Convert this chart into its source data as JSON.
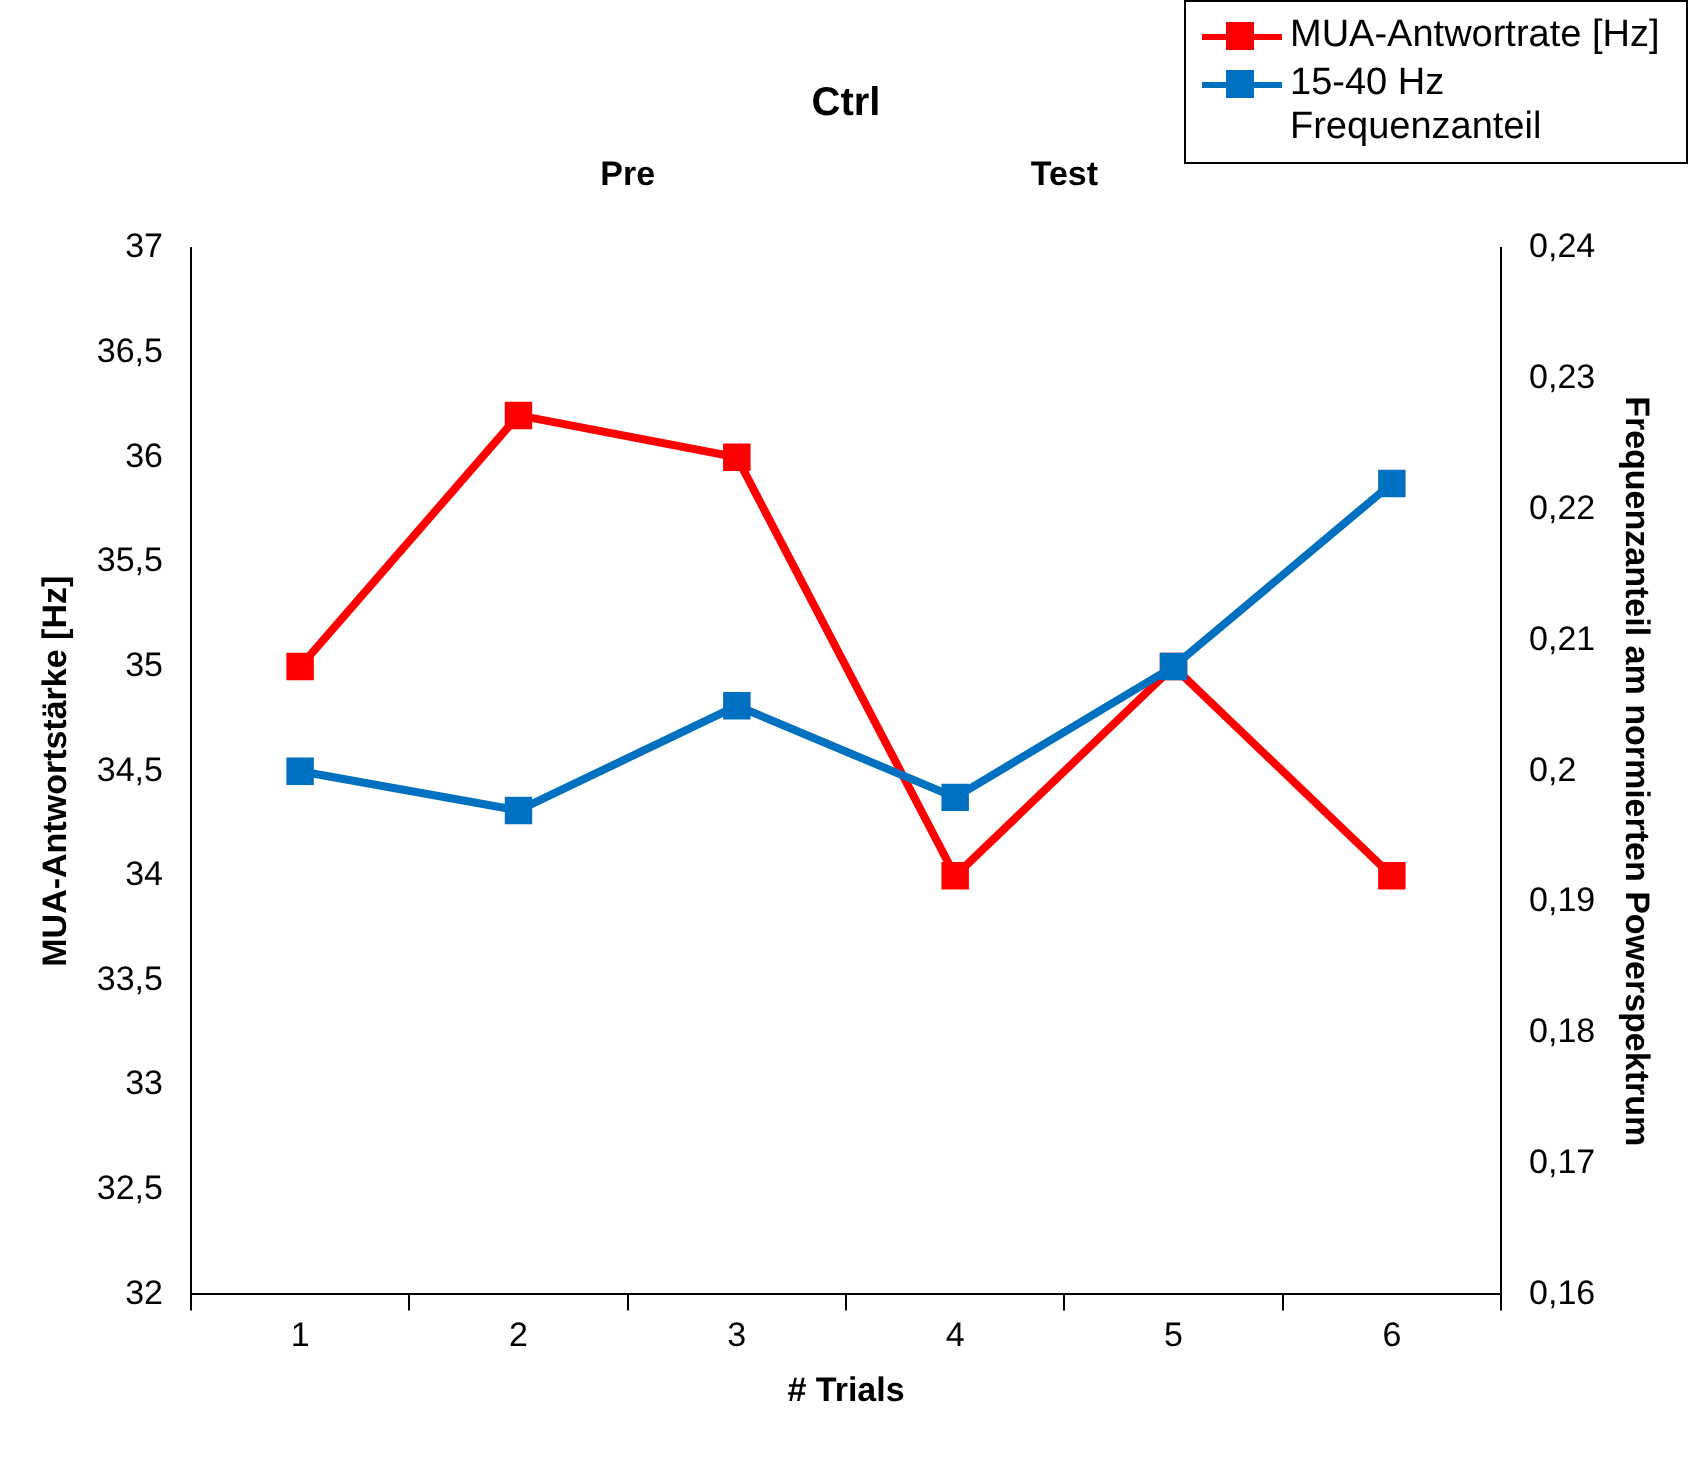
{
  "chart_data": {
    "type": "line",
    "title": "Ctrl",
    "xlabel": "# Trials",
    "ylabel": "MUA-Antwortstärke [Hz]",
    "y2label": "Frequenzanteil am normierten Powerspektrum",
    "annotations": [
      "Pre",
      "Test"
    ],
    "categories": [
      "1",
      "2",
      "3",
      "4",
      "5",
      "6"
    ],
    "series": [
      {
        "name": "MUA-Antwortrate [Hz]",
        "color": "#ff0000",
        "values": [
          35.0,
          36.2,
          36.0,
          34.0,
          35.0,
          34.0
        ]
      },
      {
        "name": "15-40 Hz Frequenzanteil",
        "color": "#0070c0",
        "axis": "y2",
        "values": [
          0.2,
          0.197,
          0.205,
          0.198,
          0.208,
          0.222
        ]
      }
    ],
    "ylim": [
      32,
      37
    ],
    "yticks": [
      32,
      {
        "value": 32.5,
        "label": "32,5"
      },
      33,
      {
        "value": 33.5,
        "label": "33,5"
      },
      34,
      {
        "value": 34.5,
        "label": "34,5"
      },
      35,
      {
        "value": 35.5,
        "label": "35,5"
      },
      36,
      {
        "value": 36.5,
        "label": "36,5"
      },
      37
    ],
    "y2lim": [
      0.16,
      0.24
    ],
    "y2ticks": [
      {
        "value": 0.16,
        "label": "0,16"
      },
      {
        "value": 0.17,
        "label": "0,17"
      },
      {
        "value": 0.18,
        "label": "0,18"
      },
      {
        "value": 0.19,
        "label": "0,19"
      },
      {
        "value": 0.2,
        "label": "0,2"
      },
      {
        "value": 0.21,
        "label": "0,21"
      },
      {
        "value": 0.22,
        "label": "0,22"
      },
      {
        "value": 0.23,
        "label": "0,23"
      },
      {
        "value": 0.24,
        "label": "0,24"
      }
    ],
    "grid": false,
    "legend": "top right",
    "marker": "square",
    "line_style": "solid"
  }
}
